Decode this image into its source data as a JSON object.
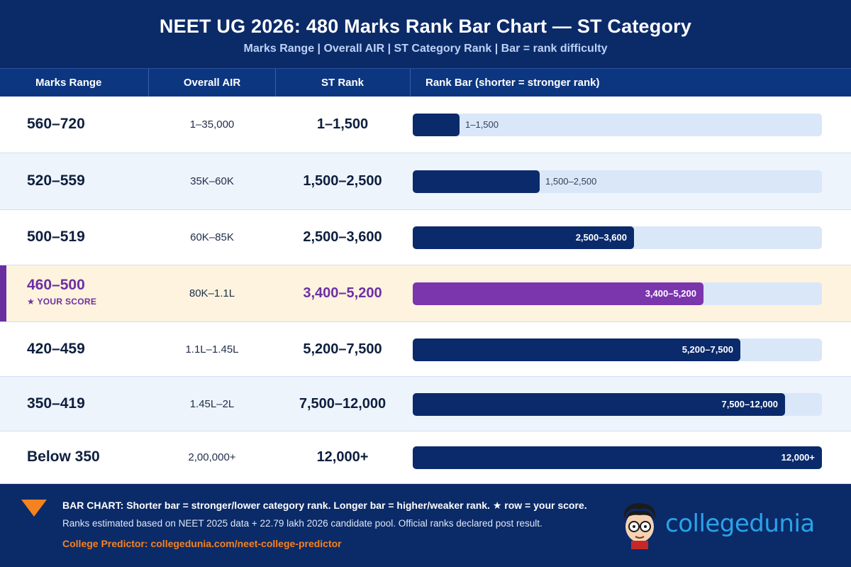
{
  "header": {
    "title": "NEET UG 2026: 480 Marks Rank Bar Chart — ST Category",
    "subtitle": "Marks Range | Overall AIR | ST Category Rank | Bar = rank difficulty"
  },
  "columns": {
    "marks": "Marks Range",
    "air": "Overall AIR",
    "st": "ST Rank",
    "bar": "Rank Bar (shorter = stronger rank)"
  },
  "your_score_label": "★ YOUR SCORE",
  "chart_data": {
    "type": "bar",
    "orientation": "horizontal",
    "title": "NEET UG 2026: 480 Marks Rank Bar Chart — ST Category",
    "xlabel": "",
    "ylabel": "",
    "highlight_index": 3,
    "colors": {
      "bar": "#0b2a6b",
      "highlight": "#7b35ad",
      "track": "#d9e7f8"
    },
    "rows": [
      {
        "marks": "560–720",
        "air": "1–35,000",
        "st_rank": "1–1,500",
        "st_rank_max": 1500
      },
      {
        "marks": "520–559",
        "air": "35K–60K",
        "st_rank": "1,500–2,500",
        "st_rank_max": 2500
      },
      {
        "marks": "500–519",
        "air": "60K–85K",
        "st_rank": "2,500–3,600",
        "st_rank_max": 3600
      },
      {
        "marks": "460–500",
        "air": "80K–1.1L",
        "st_rank": "3,400–5,200",
        "st_rank_max": 5200
      },
      {
        "marks": "420–459",
        "air": "1.1L–1.45L",
        "st_rank": "5,200–7,500",
        "st_rank_max": 7500
      },
      {
        "marks": "350–419",
        "air": "1.45L–2L",
        "st_rank": "7,500–12,000",
        "st_rank_max": 12000
      },
      {
        "marks": "Below 350",
        "air": "2,00,000+",
        "st_rank": "12,000+",
        "st_rank_max": 12000
      }
    ],
    "bar_fraction": [
      0.115,
      0.31,
      0.54,
      0.71,
      0.8,
      0.91,
      1.0
    ]
  },
  "footer": {
    "note1": "BAR CHART: Shorter bar = stronger/lower category rank. Longer bar = higher/weaker rank. ★ row = your score.",
    "note2": "Ranks estimated based on NEET 2025 data + 22.79 lakh 2026 candidate pool. Official ranks declared post result.",
    "link": "College Predictor: collegedunia.com/neet-college-predictor",
    "brand": "collegedunia"
  }
}
